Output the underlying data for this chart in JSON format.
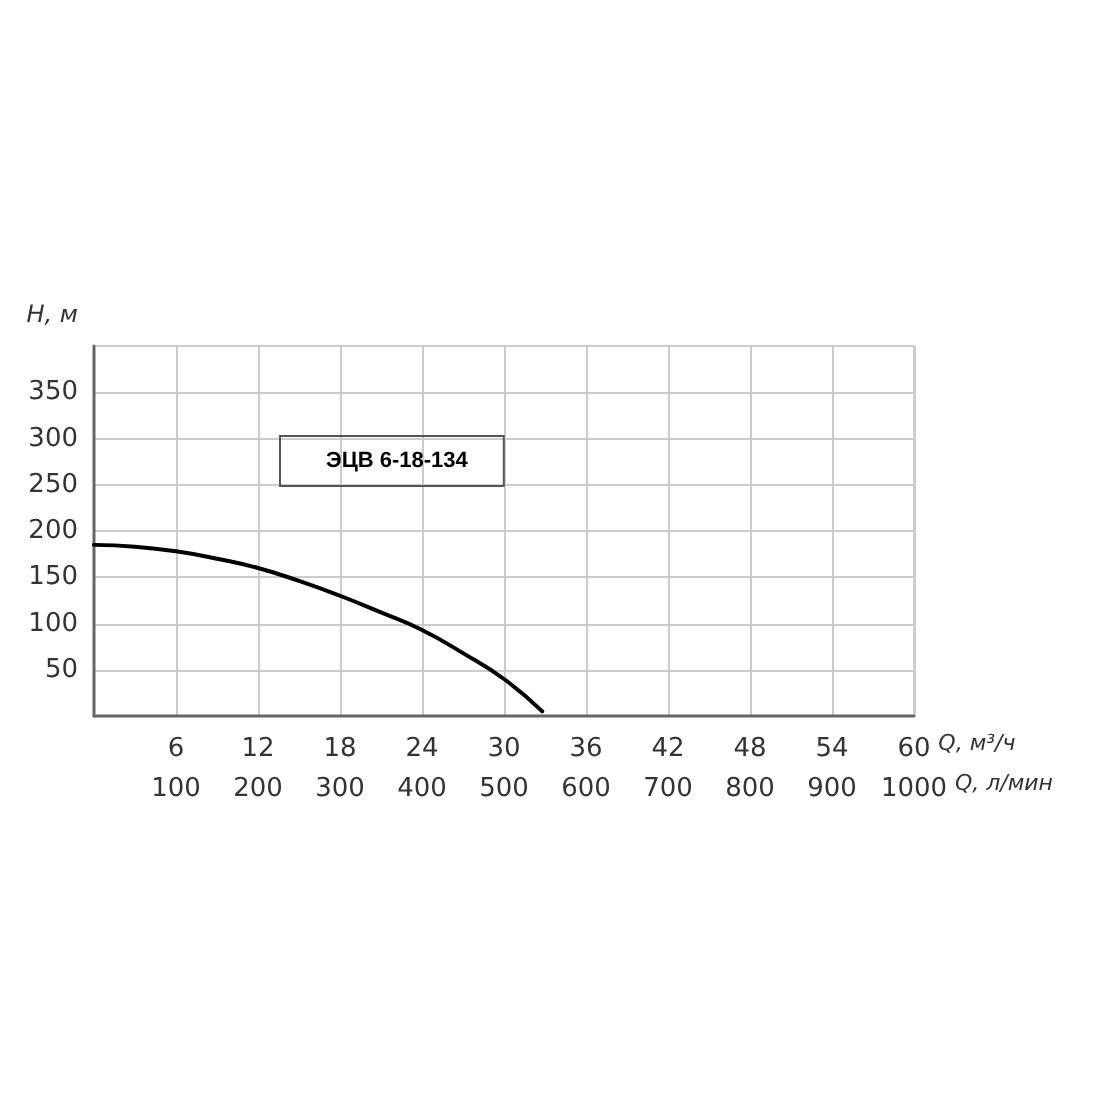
{
  "chart_data": {
    "type": "line",
    "x": [
      0,
      3,
      6,
      9,
      12,
      15,
      18,
      21,
      24,
      27,
      30,
      32.8
    ],
    "series": [
      {
        "name": "ЭЦВ 6-18-134",
        "color": "#000000",
        "values": [
          185,
          183,
          178,
          170,
          160,
          146,
          130,
          112,
          93,
          68,
          40,
          5
        ]
      }
    ],
    "xlabel": "Q, м³/ч",
    "x2label": "Q, л/мин",
    "ylabel": "H, м",
    "xlim": [
      0,
      60
    ],
    "xticks": [
      6,
      12,
      18,
      24,
      30,
      36,
      42,
      48,
      54,
      60
    ],
    "x2lim": [
      0,
      1000
    ],
    "x2ticks": [
      100,
      200,
      300,
      400,
      500,
      600,
      700,
      800,
      900,
      1000
    ],
    "ylim": [
      0,
      400
    ],
    "yticks": [
      50,
      100,
      150,
      200,
      250,
      300,
      350
    ],
    "grid": true,
    "marker": "none",
    "line_style": "solid",
    "legend": "top left"
  }
}
